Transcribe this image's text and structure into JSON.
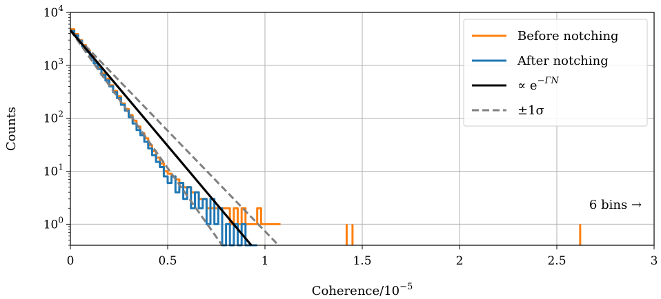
{
  "chart_data": {
    "type": "line",
    "xlabel": "Coherence/10",
    "xlabel_exponent": "−5",
    "ylabel": "Counts",
    "x_scale": "linear",
    "y_scale": "log",
    "xlim": [
      0,
      3
    ],
    "ylim": [
      0.4,
      10000
    ],
    "x_ticks": [
      0,
      0.5,
      1,
      1.5,
      2,
      2.5,
      3
    ],
    "x_tick_labels": [
      "0",
      "0.5",
      "1",
      "1.5",
      "2",
      "2.5",
      "3"
    ],
    "y_ticks": [
      1,
      10,
      100,
      1000,
      10000
    ],
    "y_tick_labels": [
      {
        "base": "10",
        "exp": "0"
      },
      {
        "base": "10",
        "exp": "1"
      },
      {
        "base": "10",
        "exp": "2"
      },
      {
        "base": "10",
        "exp": "3"
      },
      {
        "base": "10",
        "exp": "4"
      }
    ],
    "grid": true,
    "legend_position": "top-right",
    "legend": [
      {
        "label": "Before notching",
        "color": "#ff7f0e",
        "style": "solid"
      },
      {
        "label": "After notching",
        "color": "#1f77b4",
        "style": "solid"
      },
      {
        "label": "∝ e",
        "label_exponent": "−ΓN",
        "color": "#000000",
        "style": "solid"
      },
      {
        "label": "±1σ",
        "color": "#808080",
        "style": "dashed"
      }
    ],
    "annotation": "6 bins  →",
    "series": [
      {
        "name": "Before notching",
        "color": "#ff7f0e",
        "x": [
          0.01,
          0.03,
          0.05,
          0.07,
          0.09,
          0.11,
          0.13,
          0.15,
          0.17,
          0.19,
          0.21,
          0.23,
          0.25,
          0.27,
          0.29,
          0.31,
          0.33,
          0.35,
          0.37,
          0.39,
          0.41,
          0.43,
          0.45,
          0.47,
          0.49,
          0.51,
          0.53,
          0.55,
          0.57,
          0.59,
          0.61,
          0.63,
          0.65,
          0.67,
          0.69,
          0.71,
          0.73,
          0.75,
          0.77,
          0.79,
          0.81,
          0.83,
          0.85,
          0.87,
          0.89,
          0.91,
          0.93,
          0.95,
          0.97,
          0.99,
          1.01,
          1.03,
          1.05,
          1.07
        ],
        "y": [
          4800,
          3900,
          3000,
          2400,
          1900,
          1500,
          1150,
          900,
          700,
          560,
          420,
          330,
          260,
          190,
          150,
          115,
          90,
          70,
          52,
          42,
          31,
          24,
          18,
          14,
          10,
          9,
          8,
          7,
          6,
          5,
          5,
          4,
          4,
          3,
          3,
          2,
          2,
          2,
          2,
          2,
          2,
          1,
          2,
          1,
          2,
          1,
          1,
          1,
          2,
          1,
          1,
          1,
          1,
          1
        ],
        "spikes_x": [
          1.42,
          1.45,
          2.62
        ],
        "spikes_y": [
          1,
          1,
          1
        ]
      },
      {
        "name": "After notching",
        "color": "#1f77b4",
        "x": [
          0.01,
          0.03,
          0.05,
          0.07,
          0.09,
          0.11,
          0.13,
          0.15,
          0.17,
          0.19,
          0.21,
          0.23,
          0.25,
          0.27,
          0.29,
          0.31,
          0.33,
          0.35,
          0.37,
          0.39,
          0.41,
          0.43,
          0.45,
          0.47,
          0.49,
          0.51,
          0.53,
          0.55,
          0.57,
          0.59,
          0.61,
          0.63,
          0.65,
          0.67,
          0.69,
          0.71,
          0.73,
          0.75,
          0.77,
          0.79,
          0.81,
          0.83,
          0.85,
          0.87,
          0.89,
          0.91,
          0.93,
          0.95
        ],
        "y": [
          4500,
          3700,
          2900,
          2300,
          1800,
          1400,
          1100,
          850,
          660,
          520,
          400,
          310,
          240,
          180,
          140,
          105,
          80,
          60,
          48,
          36,
          27,
          20,
          15,
          12,
          8,
          6,
          8,
          4,
          6,
          3,
          5,
          2,
          4,
          2,
          3,
          1,
          3,
          1,
          2,
          0,
          1,
          0,
          1,
          0,
          1,
          0,
          0,
          0
        ]
      },
      {
        "name": "∝ e^{−ΓN} fit",
        "color": "#000000",
        "x": [
          0.0,
          0.93
        ],
        "y": [
          4600,
          0.4
        ]
      },
      {
        "name": "+1σ",
        "color": "#808080",
        "dashed": true,
        "x": [
          0.0,
          1.07
        ],
        "y": [
          4600,
          0.4
        ]
      },
      {
        "name": "−1σ",
        "color": "#808080",
        "dashed": true,
        "x": [
          0.0,
          0.78
        ],
        "y": [
          4600,
          0.4
        ]
      }
    ]
  }
}
